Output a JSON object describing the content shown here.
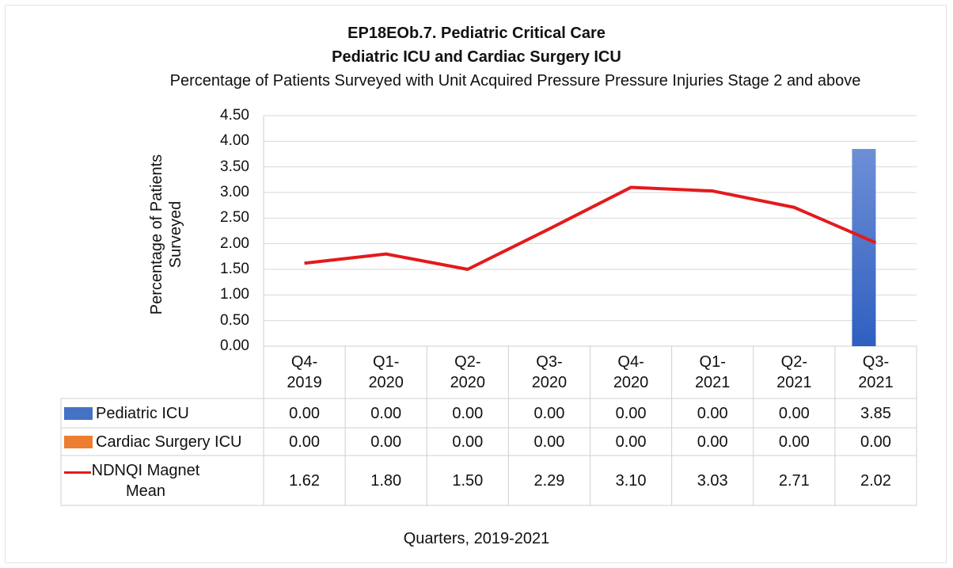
{
  "chart_data": {
    "type": "bar",
    "title": "EP18EOb.7. Pediatric Critical Care",
    "subtitle": "Pediatric ICU and Cardiac Surgery ICU",
    "description": "Percentage of Patients Surveyed with Unit Acquired Pressure Pressure Injuries Stage 2 and above",
    "ylabel": "Percentage of Patients Surveyed",
    "xlabel": "Quarters, 2019-2021",
    "categories": [
      "Q4-2019",
      "Q1-2020",
      "Q2-2020",
      "Q3-2020",
      "Q4-2020",
      "Q1-2021",
      "Q2-2021",
      "Q3-2021"
    ],
    "series": [
      {
        "name": "Pediatric ICU",
        "type": "bar",
        "color": "#4472c4",
        "values": [
          0,
          0,
          0,
          0,
          0,
          0,
          0,
          3.85
        ],
        "value_labels": [
          "0.00",
          "0.00",
          "0.00",
          "0.00",
          "0.00",
          "0.00",
          "0.00",
          "3.85"
        ]
      },
      {
        "name": "Cardiac Surgery ICU",
        "type": "bar",
        "color": "#ed7d31",
        "values": [
          0,
          0,
          0,
          0,
          0,
          0,
          0,
          0
        ],
        "value_labels": [
          "0.00",
          "0.00",
          "0.00",
          "0.00",
          "0.00",
          "0.00",
          "0.00",
          "0.00"
        ]
      },
      {
        "name": "NDNQI Magnet Mean",
        "type": "line",
        "color": "#e31a1c",
        "values": [
          1.62,
          1.8,
          1.5,
          2.29,
          3.1,
          3.03,
          2.71,
          2.02
        ],
        "value_labels": [
          "1.62",
          "1.80",
          "1.50",
          "2.29",
          "3.10",
          "3.03",
          "2.71",
          "2.02"
        ]
      }
    ],
    "ylim": [
      0,
      4.5
    ],
    "yticks": [
      {
        "value": 0,
        "label": "0.00"
      },
      {
        "value": 0.5,
        "label": "0.50"
      },
      {
        "value": 1,
        "label": "1.00"
      },
      {
        "value": 1.5,
        "label": "1.50"
      },
      {
        "value": 2,
        "label": "2.00"
      },
      {
        "value": 2.5,
        "label": "2.50"
      },
      {
        "value": 3,
        "label": "3.00"
      },
      {
        "value": 3.5,
        "label": "3.50"
      },
      {
        "value": 4,
        "label": "4.00"
      },
      {
        "value": 4.5,
        "label": "4.50"
      }
    ],
    "grid": true
  }
}
